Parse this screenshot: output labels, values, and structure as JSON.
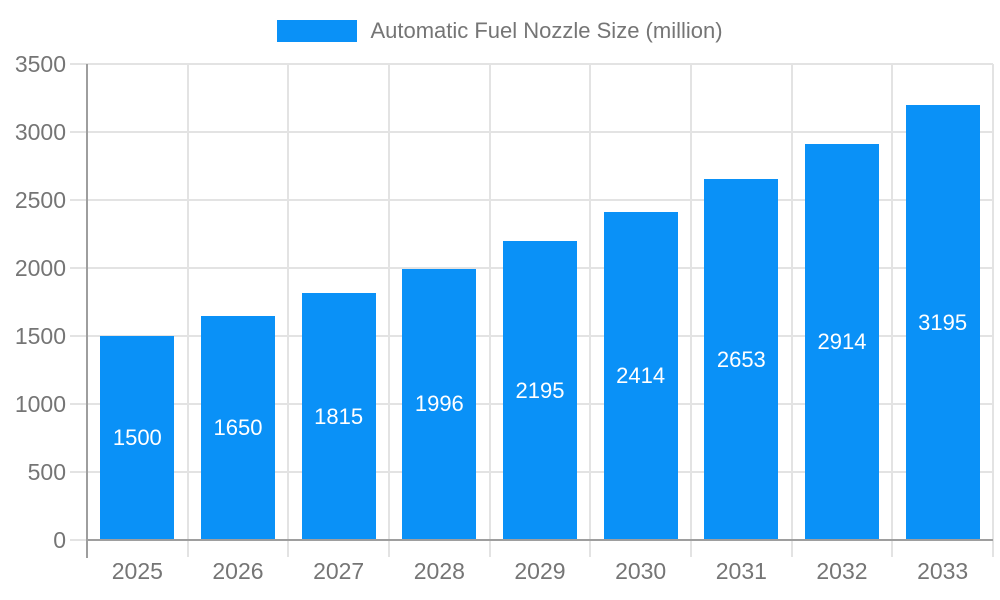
{
  "chart_data": {
    "type": "bar",
    "title": "",
    "xlabel": "",
    "ylabel": "",
    "legend": {
      "position": "top"
    },
    "categories": [
      "2025",
      "2026",
      "2027",
      "2028",
      "2029",
      "2030",
      "2031",
      "2032",
      "2033"
    ],
    "series": [
      {
        "name": "Automatic Fuel Nozzle Size (million)",
        "values": [
          1500,
          1650,
          1815,
          1996,
          2195,
          2414,
          2653,
          2914,
          3195
        ]
      }
    ],
    "ylim": [
      0,
      3500
    ],
    "ytick_step": 500,
    "yticks": [
      0,
      500,
      1000,
      1500,
      2000,
      2500,
      3000,
      3500
    ],
    "grid": true,
    "value_labels": "inside-center",
    "colors": {
      "bar": "#0a91f7",
      "axis_text": "#757575",
      "grid_line": "#e3e3e3",
      "axis_line": "#9e9e9e",
      "value_label": "#ffffff",
      "background": "#ffffff"
    }
  }
}
